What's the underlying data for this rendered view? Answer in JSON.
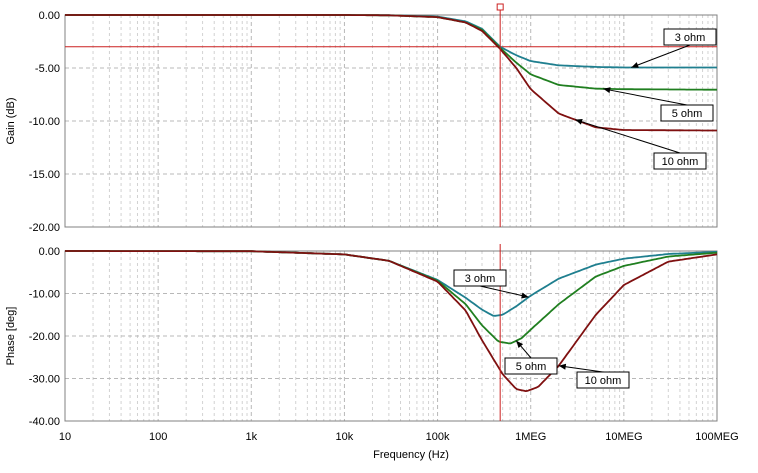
{
  "chart_data": {
    "type": "line",
    "xlabel": "Frequency (Hz)",
    "x_scale": "log",
    "x_range": [
      10,
      100000000
    ],
    "x_ticks": [
      10,
      100,
      1000,
      10000,
      100000,
      1000000,
      10000000,
      100000000
    ],
    "x_tick_labels": [
      "10",
      "100",
      "1k",
      "10k",
      "100k",
      "1MEG",
      "10MEG",
      "100MEG"
    ],
    "grid": true,
    "cursor": {
      "x_vertical": 470000,
      "y_horizontal_gain": -3.0,
      "color": "#cc2020"
    },
    "panels": [
      {
        "id": "gain",
        "ylabel": "Gain (dB)",
        "ylim": [
          -20,
          0
        ],
        "y_ticks": [
          0,
          -5,
          -10,
          -15,
          -20
        ],
        "y_tick_labels": [
          "0.00",
          "-5.00",
          "-10.00",
          "-15.00",
          "-20.00"
        ],
        "series": [
          {
            "label": "3 ohm",
            "color": "#1f7f8f",
            "points": [
              [
                10,
                0
              ],
              [
                10000,
                0
              ],
              [
                30000,
                -0.02
              ],
              [
                100000,
                -0.15
              ],
              [
                200000,
                -0.6
              ],
              [
                300000,
                -1.3
              ],
              [
                470000,
                -3.0
              ],
              [
                700000,
                -3.8
              ],
              [
                1000000,
                -4.35
              ],
              [
                2000000,
                -4.75
              ],
              [
                5000000,
                -4.9
              ],
              [
                10000000,
                -4.95
              ],
              [
                100000000,
                -4.95
              ]
            ]
          },
          {
            "label": "5 ohm",
            "color": "#207f20",
            "points": [
              [
                10,
                0
              ],
              [
                10000,
                0
              ],
              [
                30000,
                -0.03
              ],
              [
                100000,
                -0.2
              ],
              [
                200000,
                -0.7
              ],
              [
                300000,
                -1.4
              ],
              [
                470000,
                -3.1
              ],
              [
                700000,
                -4.5
              ],
              [
                1000000,
                -5.6
              ],
              [
                2000000,
                -6.6
              ],
              [
                5000000,
                -6.95
              ],
              [
                10000000,
                -7.0
              ],
              [
                100000000,
                -7.05
              ]
            ]
          },
          {
            "label": "10 ohm",
            "color": "#7f1010",
            "points": [
              [
                10,
                0
              ],
              [
                10000,
                0
              ],
              [
                30000,
                -0.03
              ],
              [
                100000,
                -0.2
              ],
              [
                200000,
                -0.7
              ],
              [
                300000,
                -1.5
              ],
              [
                470000,
                -3.2
              ],
              [
                700000,
                -5.0
              ],
              [
                1000000,
                -7.0
              ],
              [
                2000000,
                -9.3
              ],
              [
                5000000,
                -10.6
              ],
              [
                10000000,
                -10.85
              ],
              [
                100000000,
                -10.9
              ]
            ]
          }
        ],
        "annotations": [
          {
            "text": "3 ohm",
            "series": "3 ohm"
          },
          {
            "text": "5 ohm",
            "series": "5 ohm"
          },
          {
            "text": "10 ohm",
            "series": "10 ohm"
          }
        ]
      },
      {
        "id": "phase",
        "ylabel": "Phase [deg]",
        "ylim": [
          -40,
          0
        ],
        "y_ticks": [
          0,
          -10,
          -20,
          -30,
          -40
        ],
        "y_tick_labels": [
          "0.00",
          "-10.00",
          "-20.00",
          "-30.00",
          "-40.00"
        ],
        "series": [
          {
            "label": "3 ohm",
            "color": "#1f7f8f",
            "points": [
              [
                10,
                0
              ],
              [
                1000,
                -0.05
              ],
              [
                10000,
                -0.8
              ],
              [
                30000,
                -2.3
              ],
              [
                100000,
                -6.8
              ],
              [
                200000,
                -11.0
              ],
              [
                300000,
                -13.8
              ],
              [
                400000,
                -15.3
              ],
              [
                500000,
                -15.0
              ],
              [
                700000,
                -13.0
              ],
              [
                1000000,
                -10.5
              ],
              [
                2000000,
                -6.5
              ],
              [
                5000000,
                -3.2
              ],
              [
                10000000,
                -1.8
              ],
              [
                30000000,
                -0.7
              ],
              [
                100000000,
                -0.2
              ]
            ]
          },
          {
            "label": "5 ohm",
            "color": "#207f20",
            "points": [
              [
                10,
                0
              ],
              [
                1000,
                -0.05
              ],
              [
                10000,
                -0.8
              ],
              [
                30000,
                -2.3
              ],
              [
                100000,
                -7.0
              ],
              [
                200000,
                -12.5
              ],
              [
                300000,
                -17.5
              ],
              [
                450000,
                -21.3
              ],
              [
                600000,
                -21.8
              ],
              [
                800000,
                -20.5
              ],
              [
                1000000,
                -18.5
              ],
              [
                2000000,
                -12.5
              ],
              [
                5000000,
                -6.0
              ],
              [
                10000000,
                -3.5
              ],
              [
                30000000,
                -1.3
              ],
              [
                100000000,
                -0.4
              ]
            ]
          },
          {
            "label": "10 ohm",
            "color": "#7f1010",
            "points": [
              [
                10,
                0
              ],
              [
                1000,
                -0.05
              ],
              [
                10000,
                -0.8
              ],
              [
                30000,
                -2.3
              ],
              [
                100000,
                -7.2
              ],
              [
                200000,
                -14.0
              ],
              [
                300000,
                -21.0
              ],
              [
                500000,
                -29.0
              ],
              [
                700000,
                -32.5
              ],
              [
                900000,
                -33.0
              ],
              [
                1200000,
                -32.0
              ],
              [
                2000000,
                -27.0
              ],
              [
                5000000,
                -15.0
              ],
              [
                10000000,
                -8.0
              ],
              [
                30000000,
                -2.5
              ],
              [
                100000000,
                -0.8
              ]
            ]
          }
        ],
        "annotations": [
          {
            "text": "3 ohm",
            "series": "3 ohm"
          },
          {
            "text": "5 ohm",
            "series": "5 ohm"
          },
          {
            "text": "10 ohm",
            "series": "10 ohm"
          }
        ]
      }
    ]
  }
}
